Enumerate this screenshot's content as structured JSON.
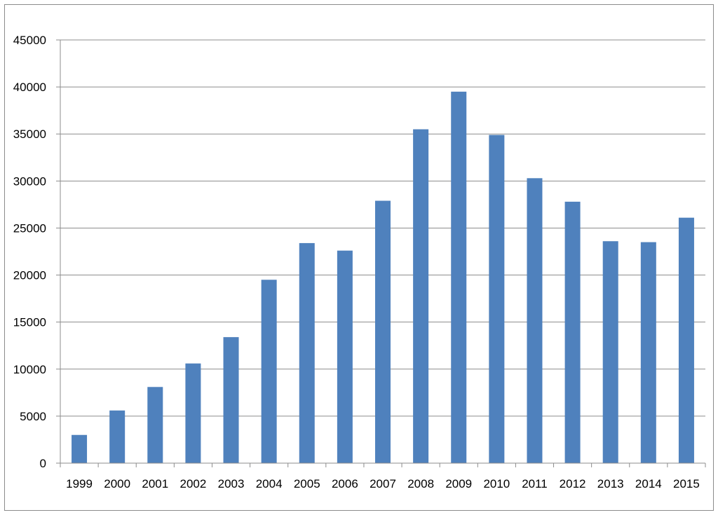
{
  "chart_data": {
    "type": "bar",
    "title": "",
    "xlabel": "",
    "ylabel": "",
    "categories": [
      "1999",
      "2000",
      "2001",
      "2002",
      "2003",
      "2004",
      "2005",
      "2006",
      "2007",
      "2008",
      "2009",
      "2010",
      "2011",
      "2012",
      "2013",
      "2014",
      "2015"
    ],
    "values": [
      3000,
      5600,
      8100,
      10600,
      13400,
      19500,
      23400,
      22600,
      27900,
      35500,
      39500,
      34900,
      30300,
      27800,
      23600,
      23500,
      26100
    ],
    "ylim": [
      0,
      45000
    ],
    "yticks": [
      "0",
      "5000",
      "10000",
      "15000",
      "20000",
      "25000",
      "30000",
      "35000",
      "40000",
      "45000"
    ],
    "grid": true,
    "legend": "none",
    "colors": {
      "bar": "#4f81bd",
      "grid": "#8c8c8c",
      "axis": "#8c8c8c"
    }
  }
}
